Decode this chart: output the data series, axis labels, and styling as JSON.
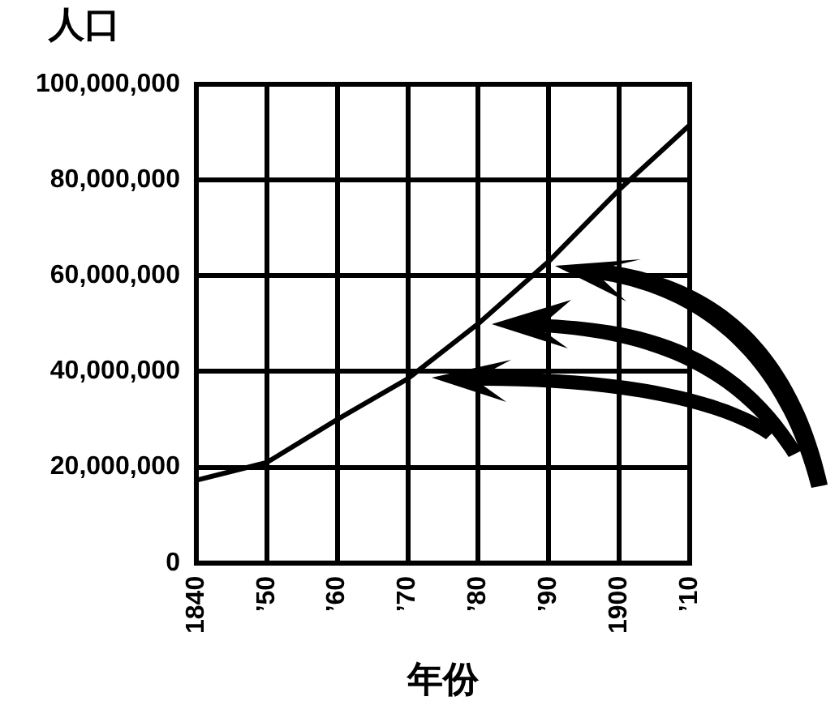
{
  "chart_data": {
    "type": "line",
    "ylabel": "人口",
    "xlabel": "年份",
    "categories": [
      "1840",
      "’50",
      "’60",
      "’70",
      "’80",
      "’90",
      "1900",
      "’10"
    ],
    "series": [
      {
        "color": "#000000",
        "values": [
          17300000,
          21000000,
          30000000,
          38500000,
          50000000,
          63000000,
          78000000,
          91500000
        ]
      }
    ],
    "ylim": [
      0,
      100000000
    ],
    "yticks": [
      {
        "value": 0,
        "label": "0"
      },
      {
        "value": 20000000,
        "label": "20,000,000"
      },
      {
        "value": 40000000,
        "label": "40,000,000"
      },
      {
        "value": 60000000,
        "label": "60,000,000"
      },
      {
        "value": 80000000,
        "label": "80,000,000"
      },
      {
        "value": 100000000,
        "label": "100,000,000"
      }
    ],
    "grid": true,
    "marker": "none",
    "line_style": "solid"
  }
}
